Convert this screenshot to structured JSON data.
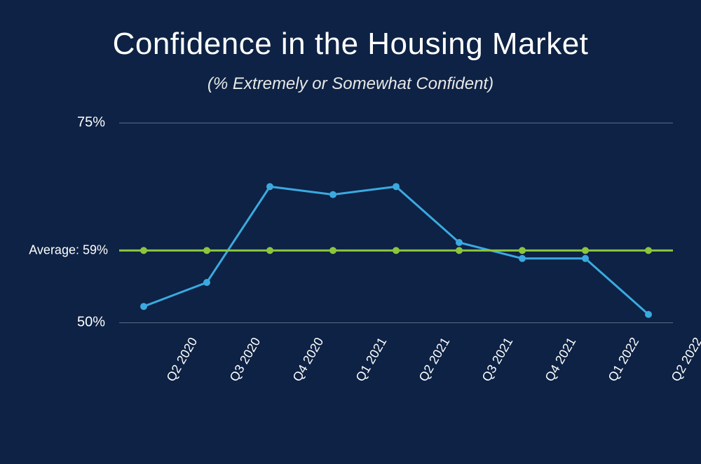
{
  "title": "Confidence in the Housing Market",
  "subtitle": "(% Extremely or Somewhat Confident)",
  "chart": {
    "type": "line",
    "background_color": "#0d2244",
    "grid_color": "#5a6b85",
    "y_axis": {
      "min": 50,
      "max": 75,
      "ticks": [
        50,
        75
      ],
      "tick_labels": [
        "50%",
        "75%"
      ]
    },
    "x_axis": {
      "categories": [
        "Q2 2020",
        "Q3 2020",
        "Q4 2020",
        "Q1 2021",
        "Q2 2021",
        "Q3 2021",
        "Q4 2021",
        "Q1 2022",
        "Q2 2022"
      ]
    },
    "series": {
      "name": "Confidence",
      "color": "#3ba9e0",
      "line_width": 3,
      "marker_radius": 5,
      "values": [
        52,
        55,
        67,
        66,
        67,
        60,
        58,
        58,
        51
      ]
    },
    "average": {
      "label": "Average: 59%",
      "value": 59,
      "color": "#8bc53f",
      "line_width": 3,
      "marker_radius": 5
    }
  }
}
